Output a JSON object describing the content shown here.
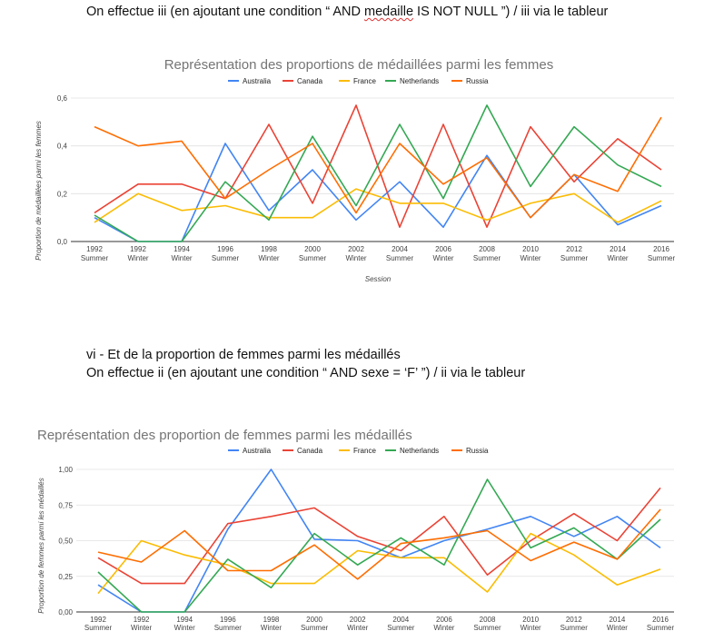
{
  "text": {
    "para1_before": "On effectue iii (en ajoutant une condition “ AND ",
    "para1_word": "medaille",
    "para1_after": " IS NOT NULL ”) / iii via le tableur",
    "para2_line1": "vi - Et de la proportion de femmes parmi les médaillés",
    "para2_line2": "On effectue ii (en ajoutant une condition “ AND sexe = ‘F’ ”) / ii via le tableur"
  },
  "colors": {
    "Australia": "#4285f4",
    "Canada": "#ea4335",
    "France": "#fbbc04",
    "Netherlands": "#34a853",
    "Russia": "#ff6d01"
  },
  "chart_data": [
    {
      "type": "line",
      "title": "Représentation des proportions de médaillées parmi les femmes",
      "xlabel": "Session",
      "ylabel": "Proportion de médaillées parmi les femmes",
      "ylim": [
        0,
        0.6
      ],
      "yticks": [
        "0,0",
        "0,2",
        "0,4",
        "0,6"
      ],
      "ytick_values": [
        0,
        0.2,
        0.4,
        0.6
      ],
      "legend_position": "top",
      "grid": true,
      "categories": [
        [
          "1992",
          "Summer"
        ],
        [
          "1992",
          "Winter"
        ],
        [
          "1994",
          "Winter"
        ],
        [
          "1996",
          "Summer"
        ],
        [
          "1998",
          "Winter"
        ],
        [
          "2000",
          "Summer"
        ],
        [
          "2002",
          "Winter"
        ],
        [
          "2004",
          "Summer"
        ],
        [
          "2006",
          "Winter"
        ],
        [
          "2008",
          "Summer"
        ],
        [
          "2010",
          "Winter"
        ],
        [
          "2012",
          "Summer"
        ],
        [
          "2014",
          "Winter"
        ],
        [
          "2016",
          "Summer"
        ]
      ],
      "series": [
        {
          "name": "Australia",
          "values": [
            0.1,
            0.0,
            0.0,
            0.41,
            0.13,
            0.3,
            0.09,
            0.25,
            0.06,
            0.36,
            0.1,
            0.28,
            0.07,
            0.15
          ]
        },
        {
          "name": "Canada",
          "values": [
            0.12,
            0.24,
            0.24,
            0.18,
            0.49,
            0.16,
            0.57,
            0.06,
            0.49,
            0.06,
            0.48,
            0.25,
            0.43,
            0.3
          ]
        },
        {
          "name": "France",
          "values": [
            0.08,
            0.2,
            0.13,
            0.15,
            0.1,
            0.1,
            0.22,
            0.16,
            0.16,
            0.09,
            0.16,
            0.2,
            0.08,
            0.17
          ]
        },
        {
          "name": "Netherlands",
          "values": [
            0.11,
            0.0,
            0.0,
            0.25,
            0.09,
            0.44,
            0.15,
            0.49,
            0.18,
            0.57,
            0.23,
            0.48,
            0.32,
            0.23
          ]
        },
        {
          "name": "Russia",
          "values": [
            0.48,
            0.4,
            0.42,
            0.18,
            0.3,
            0.41,
            0.12,
            0.41,
            0.24,
            0.35,
            0.1,
            0.28,
            0.21,
            0.52
          ]
        }
      ]
    },
    {
      "type": "line",
      "title": "Représentation des proportion de femmes parmi les médaillés",
      "xlabel": "",
      "ylabel": "Proportion de femmes parmi les médaillés",
      "ylim": [
        0,
        1
      ],
      "yticks": [
        "0,00",
        "0,25",
        "0,50",
        "0,75",
        "1,00"
      ],
      "ytick_values": [
        0,
        0.25,
        0.5,
        0.75,
        1.0
      ],
      "legend_position": "top",
      "grid": true,
      "categories": [
        [
          "1992",
          "Summer"
        ],
        [
          "1992",
          "Winter"
        ],
        [
          "1994",
          "Winter"
        ],
        [
          "1996",
          "Summer"
        ],
        [
          "1998",
          "Winter"
        ],
        [
          "2000",
          "Summer"
        ],
        [
          "2002",
          "Winter"
        ],
        [
          "2004",
          "Summer"
        ],
        [
          "2006",
          "Winter"
        ],
        [
          "2008",
          "Summer"
        ],
        [
          "2010",
          "Winter"
        ],
        [
          "2012",
          "Summer"
        ],
        [
          "2014",
          "Winter"
        ],
        [
          "2016",
          "Summer"
        ]
      ],
      "series": [
        {
          "name": "Australia",
          "values": [
            0.19,
            0.0,
            0.0,
            0.58,
            1.0,
            0.51,
            0.5,
            0.38,
            0.5,
            0.58,
            0.67,
            0.53,
            0.67,
            0.45
          ]
        },
        {
          "name": "Canada",
          "values": [
            0.38,
            0.2,
            0.2,
            0.62,
            0.67,
            0.73,
            0.53,
            0.43,
            0.67,
            0.26,
            0.5,
            0.69,
            0.5,
            0.87
          ]
        },
        {
          "name": "France",
          "values": [
            0.13,
            0.5,
            0.4,
            0.33,
            0.2,
            0.2,
            0.43,
            0.38,
            0.38,
            0.14,
            0.55,
            0.4,
            0.19,
            0.3
          ]
        },
        {
          "name": "Netherlands",
          "values": [
            0.28,
            0.0,
            0.0,
            0.37,
            0.17,
            0.55,
            0.33,
            0.52,
            0.33,
            0.93,
            0.45,
            0.59,
            0.37,
            0.65
          ]
        },
        {
          "name": "Russia",
          "values": [
            0.42,
            0.35,
            0.57,
            0.29,
            0.29,
            0.47,
            0.23,
            0.48,
            0.52,
            0.57,
            0.36,
            0.49,
            0.37,
            0.72
          ]
        }
      ]
    }
  ]
}
